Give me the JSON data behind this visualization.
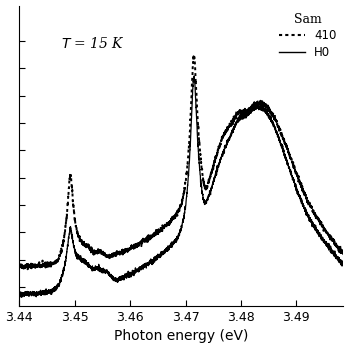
{
  "xlabel": "Photon energy (eV)",
  "xlim": [
    3.44,
    3.4985
  ],
  "annotation_T": "$T$ = 15 K",
  "legend_title": "Sam",
  "legend_entries": [
    "410",
    "H0"
  ],
  "background_color": "#ffffff",
  "line_color": "#000000",
  "figsize": [
    3.49,
    3.49
  ],
  "dpi": 100,
  "xticks": [
    3.44,
    3.45,
    3.46,
    3.47,
    3.48,
    3.49
  ],
  "ytick_positions": [
    0.05,
    0.15,
    0.25,
    0.35,
    0.45,
    0.55,
    0.65,
    0.75,
    0.85,
    0.95
  ]
}
